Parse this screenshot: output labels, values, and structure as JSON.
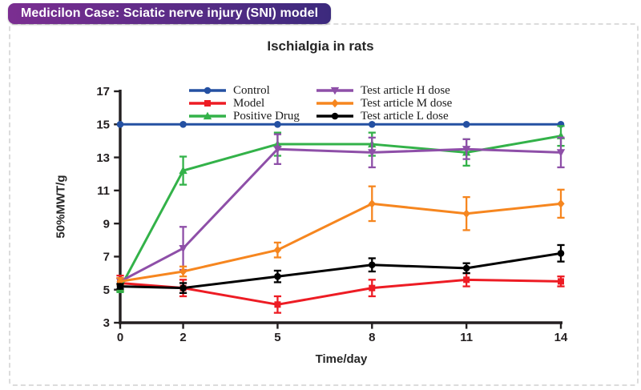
{
  "badge": {
    "label": "Medicilon Case: Sciatic nerve injury (SNI) model"
  },
  "chart_data": {
    "type": "line",
    "title": "Ischialgia in rats",
    "xlabel": "Time/day",
    "ylabel": "50%MWT/g",
    "x": [
      0,
      2,
      5,
      8,
      11,
      14
    ],
    "x_tick_labels": [
      "0",
      "2",
      "5",
      "8",
      "11",
      "14"
    ],
    "y_ticks": [
      3,
      5,
      7,
      9,
      11,
      13,
      15,
      17
    ],
    "xlim": [
      0,
      14
    ],
    "ylim": [
      3,
      17
    ],
    "grid": false,
    "legend_position": "top-center, two columns",
    "error_bars": true,
    "series": [
      {
        "name": "Control",
        "color": "#2450a2",
        "marker": "circle",
        "values": [
          15,
          15,
          15,
          15,
          15,
          15
        ],
        "errors": [
          0,
          0,
          0,
          0,
          0,
          0
        ]
      },
      {
        "name": "Model",
        "color": "#ed1c24",
        "marker": "square",
        "values": [
          5.4,
          5.1,
          4.1,
          5.1,
          5.6,
          5.5
        ],
        "errors": [
          0.45,
          0.5,
          0.5,
          0.5,
          0.4,
          0.3
        ]
      },
      {
        "name": "Positive Drug",
        "color": "#33b249",
        "marker": "triangle-up",
        "values": [
          5.1,
          12.2,
          13.8,
          13.8,
          13.3,
          14.3
        ],
        "errors": [
          0.25,
          0.85,
          0.7,
          0.7,
          0.8,
          0.6
        ]
      },
      {
        "name": "Test article H dose",
        "color": "#8e4fa8",
        "marker": "triangle-down",
        "values": [
          5.5,
          7.5,
          13.5,
          13.3,
          13.5,
          13.3
        ],
        "errors": [
          0.2,
          1.3,
          0.9,
          0.9,
          0.6,
          0.9
        ]
      },
      {
        "name": "Test article M dose",
        "color": "#f6861f",
        "marker": "diamond",
        "values": [
          5.5,
          6.1,
          7.4,
          10.2,
          9.6,
          10.2
        ],
        "errors": [
          0.2,
          0.3,
          0.45,
          1.05,
          1.0,
          0.85
        ]
      },
      {
        "name": "Test article L dose",
        "color": "#000000",
        "marker": "circle",
        "values": [
          5.2,
          5.1,
          5.8,
          6.5,
          6.3,
          7.2
        ],
        "errors": [
          0.15,
          0.3,
          0.35,
          0.4,
          0.3,
          0.5
        ]
      }
    ]
  }
}
